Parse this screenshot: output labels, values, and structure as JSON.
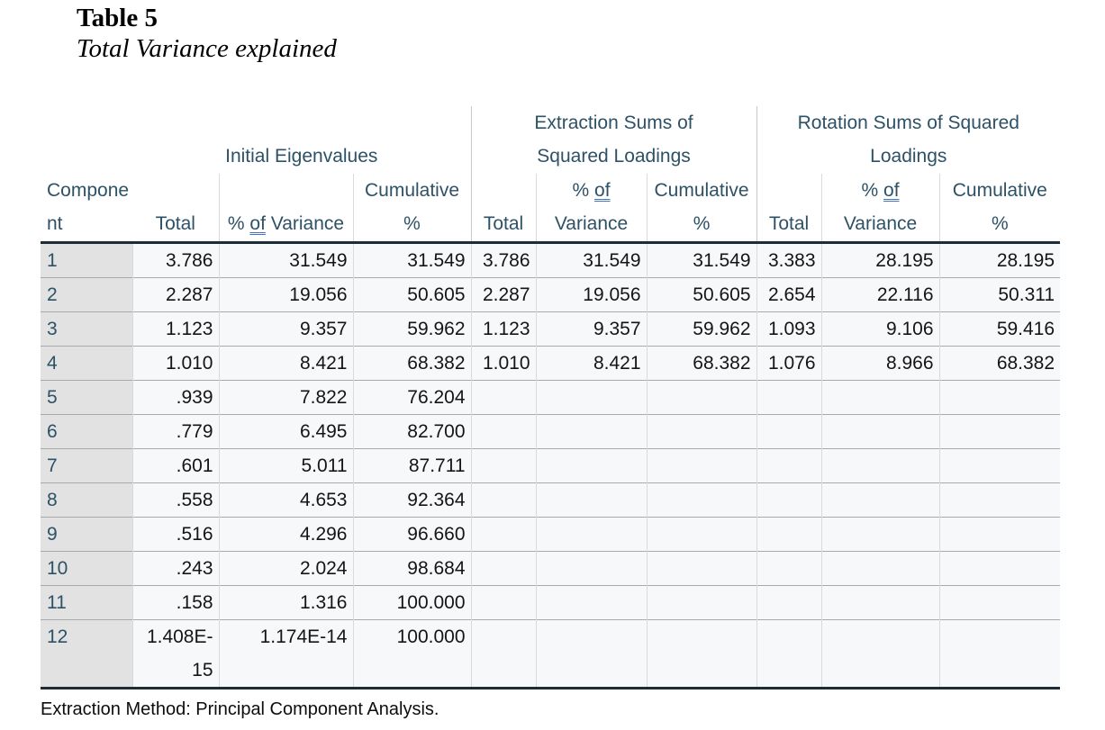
{
  "page": {
    "title": "Table 5",
    "subtitle": "Total Variance explained",
    "footnote": "Extraction Method: Principal Component Analysis."
  },
  "table": {
    "component_header": "Component",
    "groups": [
      {
        "label": "Initial Eigenvalues"
      },
      {
        "label": "Extraction Sums of Squared Loadings"
      },
      {
        "label": "Rotation Sums of Squared Loadings"
      }
    ],
    "subcolumns": {
      "total": "Total",
      "pct_prefix": "% ",
      "pct_underlined": "of",
      "pct_suffix": " Variance",
      "cumulative": "Cumulative %"
    },
    "rows": [
      [
        "1",
        "3.786",
        "31.549",
        "31.549",
        "3.786",
        "31.549",
        "31.549",
        "3.383",
        "28.195",
        "28.195"
      ],
      [
        "2",
        "2.287",
        "19.056",
        "50.605",
        "2.287",
        "19.056",
        "50.605",
        "2.654",
        "22.116",
        "50.311"
      ],
      [
        "3",
        "1.123",
        "9.357",
        "59.962",
        "1.123",
        "9.357",
        "59.962",
        "1.093",
        "9.106",
        "59.416"
      ],
      [
        "4",
        "1.010",
        "8.421",
        "68.382",
        "1.010",
        "8.421",
        "68.382",
        "1.076",
        "8.966",
        "68.382"
      ],
      [
        "5",
        ".939",
        "7.822",
        "76.204",
        "",
        "",
        "",
        "",
        "",
        ""
      ],
      [
        "6",
        ".779",
        "6.495",
        "82.700",
        "",
        "",
        "",
        "",
        "",
        ""
      ],
      [
        "7",
        ".601",
        "5.011",
        "87.711",
        "",
        "",
        "",
        "",
        "",
        ""
      ],
      [
        "8",
        ".558",
        "4.653",
        "92.364",
        "",
        "",
        "",
        "",
        "",
        ""
      ],
      [
        "9",
        ".516",
        "4.296",
        "96.660",
        "",
        "",
        "",
        "",
        "",
        ""
      ],
      [
        "10",
        ".243",
        "2.024",
        "98.684",
        "",
        "",
        "",
        "",
        "",
        ""
      ],
      [
        "11",
        ".158",
        "1.316",
        "100.000",
        "",
        "",
        "",
        "",
        "",
        ""
      ],
      [
        "12",
        "1.408E-15",
        "1.174E-14",
        "100.000",
        "",
        "",
        "",
        "",
        "",
        ""
      ]
    ],
    "colors": {
      "header_text": "#2d5166",
      "body_text": "#151515",
      "component_column_bg": "#e2e2e2",
      "cell_bg": "#f7f8f9",
      "dark_rule": "#1c2d38",
      "row_line": "#a9a9a9",
      "column_line": "#d8dadc",
      "grammar_underline": "#4472c4"
    }
  }
}
